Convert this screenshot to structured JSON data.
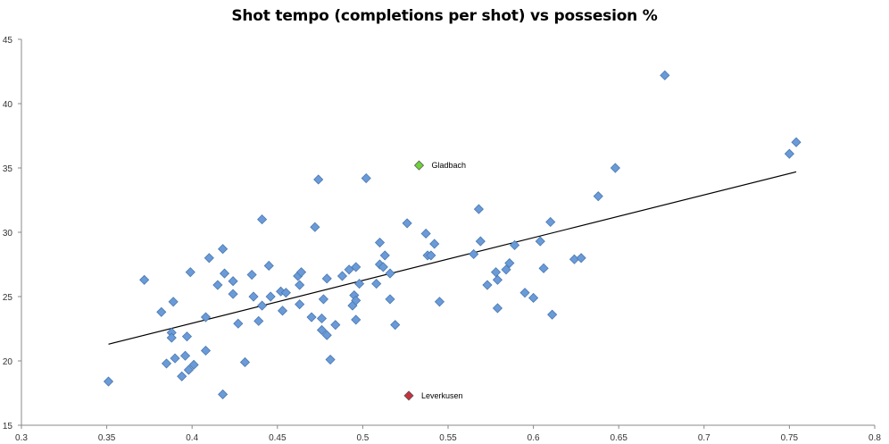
{
  "chart_data": {
    "type": "scatter",
    "title": "Shot tempo (completions per shot) vs possesion %",
    "xlabel": "",
    "ylabel": "",
    "xlim": [
      0.3,
      0.8
    ],
    "ylim": [
      15,
      45
    ],
    "xticks": [
      "0.3",
      "0.35",
      "0.4",
      "0.45",
      "0.5",
      "0.55",
      "0.6",
      "0.65",
      "0.7",
      "0.75",
      "0.8"
    ],
    "yticks": [
      "15",
      "20",
      "25",
      "30",
      "35",
      "40",
      "45"
    ],
    "grid": false,
    "colors": {
      "points": "#6a9bd8",
      "points_edge": "#4a78b0",
      "trendline": "#000000",
      "gladbach": "#6ed23a",
      "leverkusen": "#c8323c"
    },
    "trendline": {
      "x": [
        0.351,
        0.754
      ],
      "y": [
        21.3,
        34.7
      ]
    },
    "series": [
      {
        "points": [
          [
            0.351,
            18.4
          ],
          [
            0.372,
            26.3
          ],
          [
            0.382,
            23.8
          ],
          [
            0.385,
            19.8
          ],
          [
            0.388,
            22.2
          ],
          [
            0.388,
            21.8
          ],
          [
            0.389,
            24.6
          ],
          [
            0.39,
            20.2
          ],
          [
            0.394,
            18.8
          ],
          [
            0.396,
            20.4
          ],
          [
            0.397,
            21.9
          ],
          [
            0.398,
            19.3
          ],
          [
            0.399,
            26.9
          ],
          [
            0.401,
            19.7
          ],
          [
            0.408,
            23.4
          ],
          [
            0.408,
            20.8
          ],
          [
            0.41,
            28.0
          ],
          [
            0.415,
            25.9
          ],
          [
            0.418,
            17.4
          ],
          [
            0.418,
            28.7
          ],
          [
            0.419,
            26.8
          ],
          [
            0.424,
            25.2
          ],
          [
            0.424,
            26.2
          ],
          [
            0.427,
            22.9
          ],
          [
            0.431,
            19.9
          ],
          [
            0.435,
            26.7
          ],
          [
            0.436,
            25.0
          ],
          [
            0.439,
            23.1
          ],
          [
            0.441,
            31.0
          ],
          [
            0.441,
            24.3
          ],
          [
            0.445,
            27.4
          ],
          [
            0.446,
            25.0
          ],
          [
            0.452,
            25.4
          ],
          [
            0.453,
            23.9
          ],
          [
            0.455,
            25.3
          ],
          [
            0.462,
            26.6
          ],
          [
            0.463,
            24.4
          ],
          [
            0.463,
            25.9
          ],
          [
            0.464,
            26.9
          ],
          [
            0.47,
            23.4
          ],
          [
            0.472,
            30.4
          ],
          [
            0.474,
            34.1
          ],
          [
            0.476,
            22.4
          ],
          [
            0.476,
            23.3
          ],
          [
            0.477,
            24.8
          ],
          [
            0.479,
            26.4
          ],
          [
            0.479,
            22.0
          ],
          [
            0.481,
            20.1
          ],
          [
            0.484,
            22.8
          ],
          [
            0.488,
            26.6
          ],
          [
            0.492,
            27.1
          ],
          [
            0.494,
            24.3
          ],
          [
            0.495,
            25.1
          ],
          [
            0.496,
            27.3
          ],
          [
            0.496,
            24.7
          ],
          [
            0.496,
            23.2
          ],
          [
            0.498,
            26.0
          ],
          [
            0.502,
            34.2
          ],
          [
            0.508,
            26.0
          ],
          [
            0.51,
            29.2
          ],
          [
            0.51,
            27.5
          ],
          [
            0.512,
            27.3
          ],
          [
            0.513,
            28.2
          ],
          [
            0.516,
            26.8
          ],
          [
            0.516,
            24.8
          ],
          [
            0.519,
            22.8
          ],
          [
            0.526,
            30.7
          ],
          [
            0.537,
            29.9
          ],
          [
            0.538,
            28.2
          ],
          [
            0.54,
            28.2
          ],
          [
            0.542,
            29.1
          ],
          [
            0.545,
            24.6
          ],
          [
            0.565,
            28.3
          ],
          [
            0.568,
            31.8
          ],
          [
            0.569,
            29.3
          ],
          [
            0.573,
            25.9
          ],
          [
            0.578,
            26.9
          ],
          [
            0.579,
            26.3
          ],
          [
            0.579,
            24.1
          ],
          [
            0.584,
            27.1
          ],
          [
            0.586,
            27.6
          ],
          [
            0.589,
            29.0
          ],
          [
            0.595,
            25.3
          ],
          [
            0.6,
            24.9
          ],
          [
            0.604,
            29.3
          ],
          [
            0.606,
            27.2
          ],
          [
            0.61,
            30.8
          ],
          [
            0.611,
            23.6
          ],
          [
            0.624,
            27.9
          ],
          [
            0.628,
            28.0
          ],
          [
            0.638,
            32.8
          ],
          [
            0.648,
            35.0
          ],
          [
            0.677,
            42.2
          ],
          [
            0.75,
            36.1
          ],
          [
            0.754,
            37.0
          ]
        ]
      }
    ],
    "annotations": [
      {
        "label": "Gladbach",
        "x": 0.533,
        "y": 35.2,
        "color": "#6ed23a"
      },
      {
        "label": "Leverkusen",
        "x": 0.527,
        "y": 17.3,
        "color": "#c8323c"
      }
    ]
  }
}
